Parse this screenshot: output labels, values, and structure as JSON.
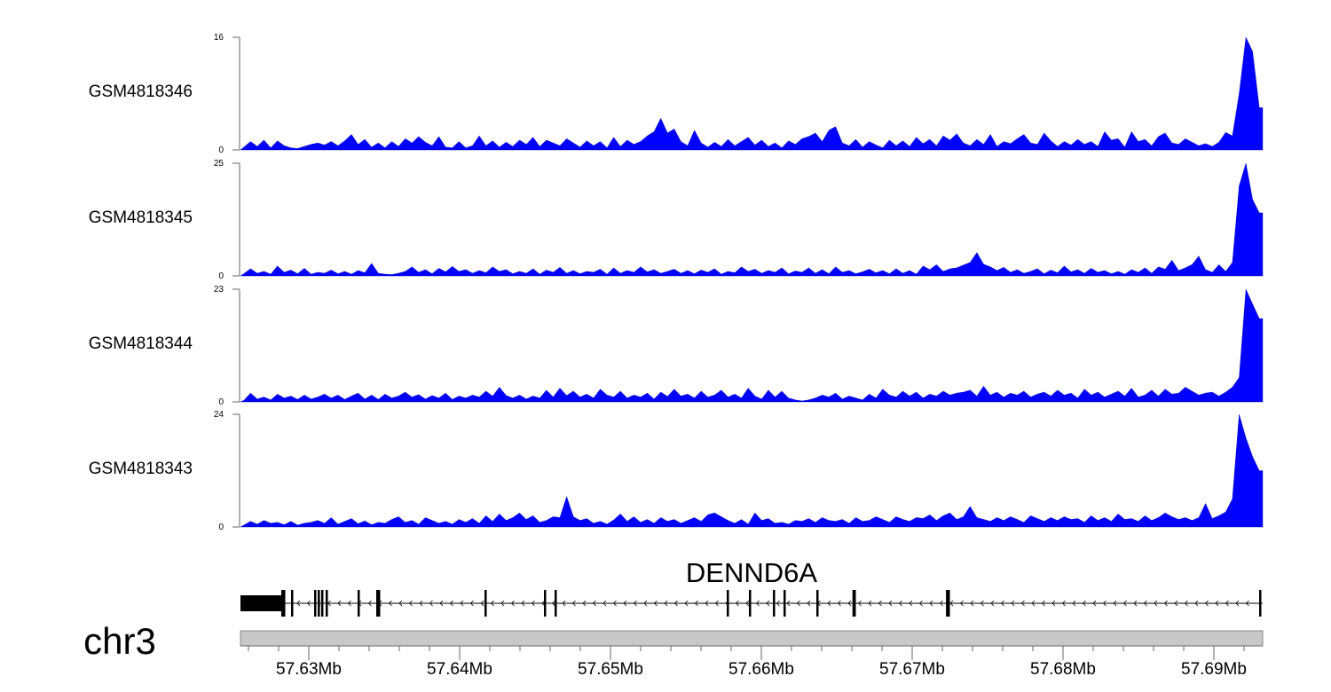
{
  "chart_data": {
    "type": "area",
    "chromosome": "chr3",
    "region_bp": [
      57625471,
      57693235
    ],
    "axis_ticks_mb": [
      57.63,
      57.64,
      57.65,
      57.66,
      57.67,
      57.68,
      57.69
    ],
    "axis_tick_labels": [
      "57.63Mb",
      "57.64Mb",
      "57.65Mb",
      "57.66Mb",
      "57.67Mb",
      "57.68Mb",
      "57.69Mb"
    ],
    "minor_tick_step_bp": 2000,
    "fill_color": "#0000ff",
    "tracks": [
      {
        "name": "GSM4818346",
        "ylim": [
          0,
          16
        ],
        "ylim_labels": [
          "0",
          "16"
        ],
        "values": [
          0.4,
          1.2,
          0.5,
          1.4,
          0.3,
          1.3,
          0.6,
          0.3,
          0.2,
          0.5,
          0.8,
          1.0,
          0.7,
          1.2,
          0.6,
          1.3,
          2.2,
          0.8,
          1.5,
          0.4,
          1.0,
          0.3,
          1.2,
          0.5,
          1.6,
          1.0,
          1.9,
          1.1,
          0.6,
          1.9,
          0.4,
          0.3,
          1.2,
          0.3,
          0.6,
          2.0,
          0.6,
          1.3,
          0.4,
          1.1,
          0.5,
          1.4,
          0.8,
          1.8,
          0.5,
          1.4,
          1.0,
          0.6,
          1.6,
          1.0,
          0.4,
          1.3,
          0.6,
          1.2,
          0.3,
          1.8,
          0.5,
          1.4,
          0.8,
          1.2,
          2.0,
          2.6,
          4.5,
          2.4,
          3.0,
          1.2,
          0.6,
          2.8,
          1.0,
          0.4,
          1.1,
          0.5,
          1.5,
          0.6,
          1.2,
          1.8,
          0.7,
          1.4,
          0.5,
          1.0,
          0.3,
          1.3,
          0.8,
          1.6,
          1.9,
          2.4,
          1.2,
          2.8,
          3.3,
          1.0,
          0.6,
          1.5,
          0.4,
          1.2,
          0.7,
          0.3,
          1.4,
          0.6,
          1.3,
          0.5,
          1.8,
          0.9,
          1.5,
          0.6,
          2.0,
          1.4,
          2.3,
          1.0,
          0.6,
          1.5,
          0.8,
          2.2,
          0.5,
          1.2,
          0.9,
          1.6,
          2.2,
          1.0,
          0.8,
          2.4,
          1.3,
          0.5,
          1.2,
          0.7,
          1.5,
          0.8,
          1.2,
          0.5,
          2.6,
          1.4,
          1.6,
          0.4,
          2.6,
          1.2,
          1.5,
          0.6,
          1.9,
          2.4,
          1.0,
          0.8,
          1.6,
          1.1,
          0.6,
          0.9,
          0.5,
          1.1,
          2.5,
          2.0,
          8.0,
          16.0,
          14.0,
          6.0
        ]
      },
      {
        "name": "GSM4818345",
        "ylim": [
          0,
          25
        ],
        "ylim_labels": [
          "0",
          "25"
        ],
        "values": [
          0.5,
          1.6,
          0.6,
          1.0,
          0.4,
          2.2,
          0.8,
          1.3,
          0.5,
          1.7,
          0.4,
          0.8,
          0.6,
          1.3,
          0.5,
          1.0,
          0.4,
          1.2,
          0.7,
          2.8,
          0.6,
          0.4,
          0.3,
          0.6,
          1.0,
          2.0,
          0.8,
          1.4,
          0.5,
          1.7,
          0.9,
          2.1,
          1.0,
          1.4,
          0.6,
          1.2,
          0.7,
          2.0,
          1.0,
          1.4,
          0.5,
          1.0,
          0.6,
          1.6,
          0.4,
          1.3,
          0.8,
          1.9,
          0.6,
          1.2,
          0.5,
          1.0,
          0.8,
          1.5,
          0.4,
          1.8,
          0.6,
          1.2,
          0.8,
          2.0,
          0.9,
          1.4,
          0.6,
          1.0,
          1.5,
          0.6,
          1.2,
          0.5,
          1.3,
          0.8,
          1.6,
          0.4,
          1.0,
          0.7,
          2.0,
          1.0,
          1.5,
          0.6,
          1.2,
          0.8,
          1.8,
          0.5,
          1.1,
          0.8,
          1.8,
          0.6,
          1.4,
          0.5,
          2.0,
          0.8,
          1.2,
          0.5,
          0.9,
          1.5,
          0.7,
          1.2,
          0.5,
          1.6,
          0.6,
          1.2,
          0.4,
          2.2,
          1.4,
          2.5,
          1.0,
          1.6,
          1.8,
          2.4,
          3.0,
          5.2,
          2.6,
          2.0,
          1.2,
          1.9,
          0.8,
          1.4,
          0.6,
          1.0,
          1.6,
          0.5,
          1.3,
          0.7,
          2.2,
          0.9,
          1.4,
          0.6,
          1.7,
          0.8,
          1.2,
          0.5,
          1.0,
          0.4,
          1.4,
          0.8,
          1.8,
          0.6,
          2.0,
          1.5,
          3.5,
          1.2,
          1.8,
          2.5,
          4.4,
          1.4,
          0.8,
          2.5,
          1.0,
          3.0,
          20.0,
          25.0,
          17.0,
          14.0
        ]
      },
      {
        "name": "GSM4818344",
        "ylim": [
          0,
          23
        ],
        "ylim_labels": [
          "0",
          "23"
        ],
        "values": [
          0.3,
          1.8,
          0.6,
          1.0,
          0.4,
          1.6,
          0.8,
          1.2,
          0.5,
          1.4,
          0.6,
          1.0,
          1.6,
          0.8,
          1.4,
          0.5,
          1.2,
          1.8,
          0.6,
          1.4,
          0.5,
          1.6,
          0.8,
          1.2,
          2.0,
          1.0,
          1.5,
          0.6,
          1.3,
          0.8,
          1.8,
          0.5,
          1.2,
          0.8,
          1.4,
          1.0,
          2.2,
          1.2,
          3.0,
          1.3,
          0.8,
          1.4,
          0.6,
          1.2,
          0.8,
          2.4,
          1.0,
          2.8,
          1.3,
          2.2,
          1.0,
          1.6,
          0.8,
          2.6,
          1.4,
          1.0,
          2.2,
          0.8,
          1.4,
          1.0,
          1.8,
          0.6,
          2.0,
          1.1,
          2.6,
          1.2,
          1.6,
          0.8,
          2.2,
          1.0,
          1.4,
          2.4,
          1.0,
          1.6,
          0.8,
          2.8,
          1.2,
          0.6,
          2.4,
          1.0,
          2.2,
          0.8,
          0.4,
          0.2,
          0.4,
          0.8,
          1.4,
          1.0,
          1.8,
          0.6,
          1.2,
          0.8,
          0.4,
          1.6,
          0.8,
          2.6,
          1.4,
          1.0,
          2.2,
          1.2,
          2.0,
          0.8,
          1.6,
          1.2,
          2.2,
          1.4,
          1.8,
          2.0,
          2.4,
          1.2,
          3.2,
          1.4,
          2.0,
          1.0,
          1.8,
          1.4,
          2.2,
          1.0,
          1.6,
          2.0,
          1.2,
          2.4,
          1.4,
          1.8,
          0.8,
          2.6,
          1.4,
          2.0,
          1.0,
          1.6,
          2.2,
          1.2,
          2.8,
          1.0,
          1.4,
          2.4,
          1.2,
          2.6,
          1.6,
          1.8,
          3.0,
          2.2,
          1.4,
          1.8,
          2.0,
          1.2,
          2.0,
          3.0,
          5.0,
          23.0,
          20.0,
          17.0
        ]
      },
      {
        "name": "GSM4818343",
        "ylim": [
          0,
          24
        ],
        "ylim_labels": [
          "0",
          "24"
        ],
        "values": [
          0.4,
          1.2,
          0.6,
          1.4,
          0.8,
          1.0,
          0.5,
          1.2,
          0.4,
          0.8,
          1.0,
          1.4,
          0.8,
          2.0,
          0.6,
          1.2,
          1.8,
          0.7,
          1.3,
          0.5,
          1.0,
          0.8,
          1.6,
          2.2,
          1.0,
          1.4,
          0.6,
          2.0,
          1.4,
          0.8,
          1.2,
          0.6,
          1.6,
          1.0,
          1.8,
          0.8,
          2.4,
          1.2,
          2.8,
          1.4,
          2.0,
          3.0,
          1.6,
          2.4,
          1.0,
          1.4,
          2.2,
          2.0,
          6.5,
          2.2,
          1.4,
          1.8,
          0.8,
          1.2,
          0.6,
          1.5,
          2.8,
          1.2,
          2.2,
          1.0,
          1.6,
          0.8,
          2.0,
          1.2,
          1.6,
          0.8,
          1.4,
          2.0,
          1.2,
          2.6,
          3.0,
          2.2,
          1.4,
          0.8,
          1.6,
          0.6,
          3.0,
          1.4,
          1.8,
          0.8,
          1.0,
          0.6,
          1.4,
          1.2,
          1.8,
          1.0,
          2.0,
          1.4,
          1.2,
          1.6,
          0.8,
          2.0,
          1.2,
          1.4,
          2.2,
          1.6,
          1.0,
          2.2,
          1.6,
          1.2,
          2.0,
          1.8,
          2.6,
          1.4,
          2.4,
          3.0,
          1.6,
          2.2,
          4.4,
          2.0,
          1.6,
          1.2,
          2.0,
          1.4,
          2.2,
          1.6,
          1.0,
          2.4,
          1.8,
          1.2,
          2.0,
          1.4,
          2.2,
          1.6,
          1.8,
          1.0,
          2.4,
          1.4,
          2.0,
          1.2,
          2.8,
          1.6,
          1.8,
          1.2,
          2.4,
          1.4,
          2.0,
          3.0,
          2.2,
          1.6,
          2.0,
          1.4,
          2.0,
          5.0,
          1.8,
          2.4,
          3.2,
          6.0,
          24.0,
          19.0,
          15.0,
          12.0
        ]
      }
    ],
    "gene": {
      "name": "DENND6A",
      "strand": "-",
      "start_bp": 57625471,
      "end_bp": 57693235,
      "thick_block_bp": [
        57625471,
        57628235
      ],
      "exons_bp": [
        57628235,
        57628353,
        57628882,
        57630412,
        57630650,
        57630880,
        57631176,
        57633294,
        57634530,
        57634647,
        57641706,
        57645647,
        57646353,
        57657765,
        57659235,
        57660824,
        57661529,
        57663706,
        57666100,
        57666176,
        57672300,
        57672412,
        57693059
      ]
    }
  }
}
